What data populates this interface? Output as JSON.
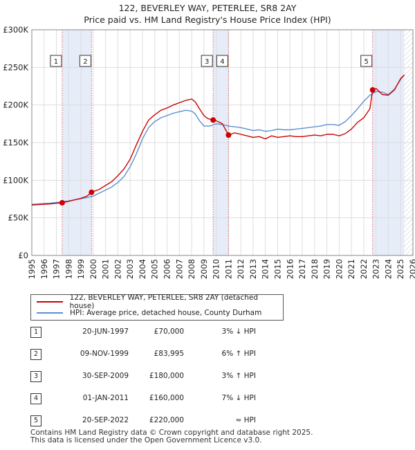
{
  "chart_data": {
    "type": "line",
    "title": "122, BEVERLEY WAY, PETERLEE, SR8 2AY",
    "subtitle": "Price paid vs. HM Land Registry's House Price Index (HPI)",
    "xlim": [
      1995,
      2026
    ],
    "ylim": [
      0,
      300000
    ],
    "x_ticks": [
      "1995",
      "1996",
      "1997",
      "1998",
      "1999",
      "2000",
      "2001",
      "2002",
      "2003",
      "2004",
      "2005",
      "2006",
      "2007",
      "2008",
      "2009",
      "2010",
      "2011",
      "2012",
      "2013",
      "2014",
      "2015",
      "2016",
      "2017",
      "2018",
      "2019",
      "2020",
      "2021",
      "2022",
      "2023",
      "2024",
      "2025",
      "2026"
    ],
    "y_ticks": [
      {
        "value": 0,
        "label": "£0"
      },
      {
        "value": 50000,
        "label": "£50K"
      },
      {
        "value": 100000,
        "label": "£100K"
      },
      {
        "value": 150000,
        "label": "£150K"
      },
      {
        "value": 200000,
        "label": "£200K"
      },
      {
        "value": 250000,
        "label": "£250K"
      },
      {
        "value": 300000,
        "label": "£300K"
      }
    ],
    "series": [
      {
        "name": "122, BEVERLEY WAY, PETERLEE, SR8 2AY (detached house)",
        "color": "#cc0000",
        "x": [
          1995.0,
          1995.5,
          1996.0,
          1996.5,
          1997.0,
          1997.47,
          1998.0,
          1998.5,
          1999.0,
          1999.5,
          1999.86,
          2000.5,
          2001.0,
          2001.5,
          2002.0,
          2002.5,
          2003.0,
          2003.5,
          2004.0,
          2004.5,
          2005.0,
          2005.5,
          2006.0,
          2006.5,
          2007.0,
          2007.5,
          2008.0,
          2008.3,
          2008.6,
          2009.0,
          2009.3,
          2009.75,
          2010.0,
          2010.5,
          2011.0,
          2011.5,
          2012.0,
          2012.5,
          2013.0,
          2013.5,
          2014.0,
          2014.5,
          2015.0,
          2015.5,
          2016.0,
          2016.5,
          2017.0,
          2017.5,
          2018.0,
          2018.5,
          2019.0,
          2019.5,
          2020.0,
          2020.5,
          2021.0,
          2021.5,
          2022.0,
          2022.5,
          2022.72,
          2023.0,
          2023.5,
          2024.0,
          2024.5,
          2025.0,
          2025.3
        ],
        "values": [
          67000,
          67500,
          68000,
          68500,
          69500,
          70000,
          72000,
          74000,
          76000,
          79000,
          83995,
          88000,
          93000,
          98000,
          106000,
          115000,
          128000,
          147000,
          165000,
          180000,
          187000,
          193000,
          196000,
          200000,
          203000,
          206000,
          208000,
          204000,
          196000,
          186000,
          182000,
          180000,
          179000,
          175000,
          160000,
          163000,
          161000,
          159000,
          157000,
          158000,
          155000,
          159000,
          157000,
          158000,
          159000,
          158000,
          158000,
          159000,
          160000,
          159000,
          161000,
          161000,
          159000,
          162000,
          168000,
          177000,
          183000,
          195000,
          220000,
          222000,
          214000,
          213000,
          220000,
          235000,
          240000
        ]
      },
      {
        "name": "HPI: Average price, detached house, County Durham",
        "color": "#5b8fd0",
        "x": [
          1995.0,
          1995.5,
          1996.0,
          1996.5,
          1997.0,
          1997.5,
          1998.0,
          1998.5,
          1999.0,
          1999.5,
          2000.0,
          2000.5,
          2001.0,
          2001.5,
          2002.0,
          2002.5,
          2003.0,
          2003.5,
          2004.0,
          2004.5,
          2005.0,
          2005.5,
          2006.0,
          2006.5,
          2007.0,
          2007.5,
          2008.0,
          2008.3,
          2008.6,
          2009.0,
          2009.5,
          2010.0,
          2010.5,
          2011.0,
          2011.5,
          2012.0,
          2012.5,
          2013.0,
          2013.5,
          2014.0,
          2014.5,
          2015.0,
          2015.5,
          2016.0,
          2016.5,
          2017.0,
          2017.5,
          2018.0,
          2018.5,
          2019.0,
          2019.5,
          2020.0,
          2020.5,
          2021.0,
          2021.5,
          2022.0,
          2022.5,
          2023.0,
          2023.5,
          2024.0,
          2024.5,
          2025.0,
          2025.3
        ],
        "values": [
          68000,
          68500,
          69000,
          69500,
          70500,
          71500,
          72500,
          74000,
          75500,
          77000,
          79000,
          83000,
          87000,
          91000,
          97000,
          105000,
          118000,
          135000,
          155000,
          170000,
          178000,
          183000,
          186000,
          189000,
          191000,
          193000,
          192000,
          188000,
          180000,
          172000,
          172000,
          175000,
          174000,
          172000,
          171000,
          170000,
          168000,
          166000,
          167000,
          165000,
          166000,
          168000,
          167000,
          167000,
          168000,
          169000,
          170000,
          171000,
          172000,
          174000,
          174000,
          173000,
          178000,
          186000,
          195000,
          205000,
          213000,
          218000,
          217000,
          214000,
          221000,
          234000,
          240000
        ]
      }
    ],
    "sales": [
      {
        "n": "1",
        "x": 1997.47,
        "value": 70000
      },
      {
        "n": "2",
        "x": 1999.86,
        "value": 83995
      },
      {
        "n": "3",
        "x": 2009.75,
        "value": 180000
      },
      {
        "n": "4",
        "x": 2011.0,
        "value": 160000
      },
      {
        "n": "5",
        "x": 2022.72,
        "value": 220000
      }
    ],
    "shaded_ranges": [
      [
        1997.47,
        1999.86
      ],
      [
        2009.75,
        2011.0
      ],
      [
        2022.72,
        2025.3
      ]
    ]
  },
  "legend": {
    "items": [
      {
        "label": "122, BEVERLEY WAY, PETERLEE, SR8 2AY (detached house)",
        "color": "#cc0000"
      },
      {
        "label": "HPI: Average price, detached house, County Durham",
        "color": "#5b8fd0"
      }
    ]
  },
  "sales_table": [
    {
      "n": "1",
      "date": "20-JUN-1997",
      "price": "£70,000",
      "rel": "3% ↓ HPI"
    },
    {
      "n": "2",
      "date": "09-NOV-1999",
      "price": "£83,995",
      "rel": "6% ↑ HPI"
    },
    {
      "n": "3",
      "date": "30-SEP-2009",
      "price": "£180,000",
      "rel": "3% ↑ HPI"
    },
    {
      "n": "4",
      "date": "01-JAN-2011",
      "price": "£160,000",
      "rel": "7% ↓ HPI"
    },
    {
      "n": "5",
      "date": "20-SEP-2022",
      "price": "£220,000",
      "rel": "≈ HPI"
    }
  ],
  "footer": {
    "line1": "Contains HM Land Registry data © Crown copyright and database right 2025.",
    "line2": "This data is licensed under the Open Government Licence v3.0."
  }
}
